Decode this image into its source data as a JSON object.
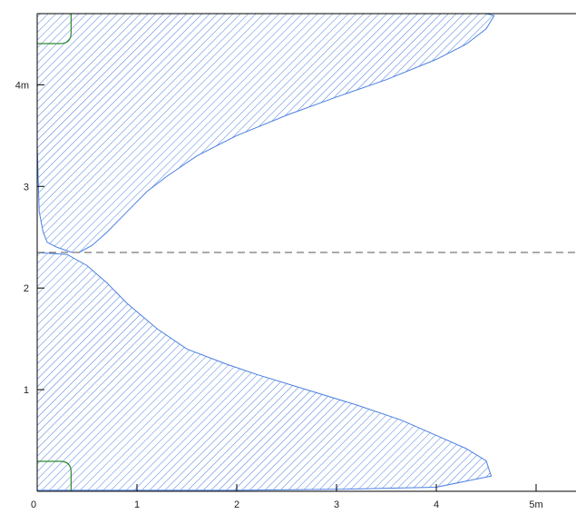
{
  "chart_data": {
    "type": "area",
    "title": "",
    "xlabel": "",
    "ylabel": "",
    "xlim": [
      0,
      5.4
    ],
    "ylim": [
      0,
      4.7
    ],
    "x_ticks": [
      {
        "value": 0,
        "label": "0"
      },
      {
        "value": 1,
        "label": "1"
      },
      {
        "value": 2,
        "label": "2"
      },
      {
        "value": 3,
        "label": "3"
      },
      {
        "value": 4,
        "label": "4"
      },
      {
        "value": 5,
        "label": "5m"
      }
    ],
    "y_ticks": [
      {
        "value": 1,
        "label": "1"
      },
      {
        "value": 2,
        "label": "2"
      },
      {
        "value": 3,
        "label": "3"
      },
      {
        "value": 4,
        "label": "4m"
      }
    ],
    "grid": false,
    "reference_line": {
      "y": 2.35,
      "style": "dashed"
    },
    "series": [
      {
        "fill_style": "hatched",
        "color": "#4a7fe0",
        "points": [
          [
            0,
            0.01
          ],
          [
            1.0,
            0.01
          ],
          [
            2.0,
            0.01
          ],
          [
            3.0,
            0.02
          ],
          [
            4.0,
            0.04
          ],
          [
            4.55,
            0.15
          ],
          [
            4.5,
            0.3
          ],
          [
            4.3,
            0.42
          ],
          [
            4.0,
            0.55
          ],
          [
            3.65,
            0.7
          ],
          [
            3.2,
            0.85
          ],
          [
            2.7,
            1.0
          ],
          [
            2.2,
            1.15
          ],
          [
            1.9,
            1.25
          ],
          [
            1.5,
            1.4
          ],
          [
            1.2,
            1.6
          ],
          [
            0.9,
            1.85
          ],
          [
            0.7,
            2.05
          ],
          [
            0.5,
            2.22
          ],
          [
            0.3,
            2.33
          ],
          [
            0.0,
            2.35
          ]
        ]
      },
      {
        "fill_style": "hatched",
        "color": "#4a7fe0",
        "points": [
          [
            0.0,
            3.4
          ],
          [
            0.02,
            2.75
          ],
          [
            0.06,
            2.55
          ],
          [
            0.1,
            2.45
          ],
          [
            0.2,
            2.4
          ],
          [
            0.35,
            2.35
          ],
          [
            0.42,
            2.35
          ],
          [
            0.55,
            2.42
          ],
          [
            0.7,
            2.55
          ],
          [
            0.9,
            2.75
          ],
          [
            1.1,
            2.95
          ],
          [
            1.3,
            3.1
          ],
          [
            1.6,
            3.3
          ],
          [
            2.0,
            3.5
          ],
          [
            2.5,
            3.7
          ],
          [
            3.0,
            3.88
          ],
          [
            3.5,
            4.05
          ],
          [
            4.0,
            4.25
          ],
          [
            4.3,
            4.4
          ],
          [
            4.5,
            4.55
          ],
          [
            4.58,
            4.68
          ],
          [
            4.5,
            4.7
          ],
          [
            0.0,
            4.7
          ]
        ]
      }
    ],
    "corner_markers": [
      {
        "y": 0.0,
        "color": "#2e8b2e"
      },
      {
        "y": 4.7,
        "color": "#2e8b2e"
      }
    ]
  }
}
